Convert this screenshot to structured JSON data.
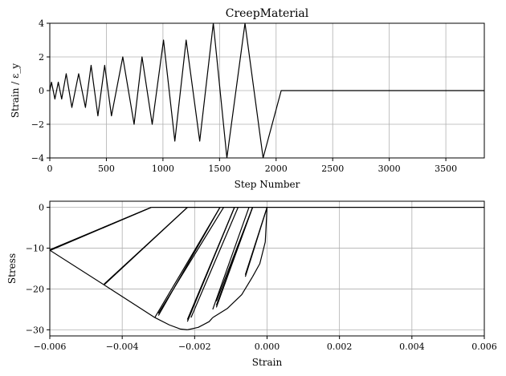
{
  "chart_data": [
    {
      "type": "line",
      "title": "CreepMaterial",
      "xlabel": "Step Number",
      "ylabel": "Strain / ε_y",
      "xlim": [
        0,
        3840
      ],
      "ylim": [
        -4,
        4
      ],
      "xticks": [
        0,
        500,
        1000,
        1500,
        2000,
        2500,
        3000,
        3500
      ],
      "yticks": [
        -4,
        -2,
        0,
        2,
        4
      ],
      "xtick_labels": [
        "0",
        "500",
        "1000",
        "1500",
        "2000",
        "2500",
        "3000",
        "3500"
      ],
      "ytick_labels": [
        "−4",
        "−2",
        "0",
        "2",
        "4"
      ],
      "grid": true,
      "series": [
        {
          "x": [
            0,
            15,
            45,
            75,
            105,
            145,
            195,
            255,
            315,
            365,
            425,
            485,
            545,
            645,
            745,
            815,
            905,
            1005,
            1105,
            1205,
            1325,
            1445,
            1565,
            1725,
            1885,
            2045,
            2205,
            2365,
            2525,
            2725,
            2925,
            3125,
            3325,
            3525,
            3725,
            3840
          ],
          "y": [
            0,
            0.5,
            -0.5,
            0.5,
            -0.5,
            1.0,
            -1.0,
            1.0,
            -1.0,
            1.5,
            -1.5,
            1.5,
            -1.5,
            2.0,
            -2.0,
            2.0,
            -2.0,
            3.0,
            -3.0,
            3.0,
            -3.0,
            4.0,
            -4.0,
            4.0,
            -4.0,
            0.0,
            0.0,
            0.0,
            0.0,
            0.0,
            0.0,
            0.0,
            0.0,
            0.0,
            0.0,
            0.0
          ]
        }
      ]
    },
    {
      "type": "line",
      "title": "",
      "xlabel": "Strain",
      "ylabel": "Stress",
      "xlim": [
        -0.006,
        0.006
      ],
      "ylim": [
        -31.5,
        1.5
      ],
      "xticks": [
        -0.006,
        -0.004,
        -0.002,
        0.0,
        0.002,
        0.004,
        0.006
      ],
      "yticks": [
        -30,
        -20,
        -10,
        0
      ],
      "xtick_labels": [
        "−0.006",
        "−0.004",
        "−0.002",
        "0.000",
        "0.002",
        "0.004",
        "0.006"
      ],
      "ytick_labels": [
        "−30",
        "−20",
        "−10",
        "0"
      ],
      "grid": true,
      "series": [
        {
          "x": [
            -0.006,
            -0.0032
          ],
          "y": [
            -10.5,
            0
          ]
        },
        {
          "x": [
            -0.006,
            -0.0032
          ],
          "y": [
            -10.4,
            0
          ]
        },
        {
          "x": [
            -0.006,
            -0.0032
          ],
          "y": [
            -10.6,
            0
          ]
        },
        {
          "x": [
            -0.006,
            -0.0045
          ],
          "y": [
            -10.5,
            -19
          ]
        },
        {
          "x": [
            -0.0045,
            -0.0022
          ],
          "y": [
            -19,
            0
          ]
        },
        {
          "x": [
            -0.0045,
            -0.0022
          ],
          "y": [
            -18.8,
            0
          ]
        },
        {
          "x": [
            -0.0045,
            -0.0031
          ],
          "y": [
            -19,
            -27
          ]
        },
        {
          "x": [
            -0.0031,
            -0.0013
          ],
          "y": [
            -27,
            0
          ]
        },
        {
          "x": [
            -0.003,
            -0.0013
          ],
          "y": [
            -26.5,
            0
          ]
        },
        {
          "x": [
            -0.003,
            -0.0012
          ],
          "y": [
            -26,
            0
          ]
        },
        {
          "x": [
            -0.0031,
            -0.0027,
            -0.0024,
            -0.0022
          ],
          "y": [
            -27,
            -28.8,
            -29.8,
            -30
          ]
        },
        {
          "x": [
            -0.0022,
            -0.0019,
            -0.0016,
            -0.0015
          ],
          "y": [
            -30,
            -29.4,
            -28,
            -27
          ]
        },
        {
          "x": [
            -0.0022,
            -0.0009
          ],
          "y": [
            -28,
            0
          ]
        },
        {
          "x": [
            -0.0022,
            -0.0009
          ],
          "y": [
            -27.5,
            0
          ]
        },
        {
          "x": [
            -0.0021,
            -0.0008
          ],
          "y": [
            -27,
            0
          ]
        },
        {
          "x": [
            -0.0015,
            -0.0011,
            -0.0007,
            -0.0004
          ],
          "y": [
            -27,
            -24.8,
            -21.4,
            -17
          ]
        },
        {
          "x": [
            -0.0015,
            -0.0005
          ],
          "y": [
            -25,
            0
          ]
        },
        {
          "x": [
            -0.0014,
            -0.0004
          ],
          "y": [
            -24.5,
            0
          ]
        },
        {
          "x": [
            -0.0014,
            -0.0004
          ],
          "y": [
            -24,
            0
          ]
        },
        {
          "x": [
            -0.0014,
            -0.0004
          ],
          "y": [
            -23,
            0
          ]
        },
        {
          "x": [
            -0.0004,
            -0.0002,
            -5e-05,
            0.0
          ],
          "y": [
            -17,
            -13.8,
            -8.5,
            0
          ]
        },
        {
          "x": [
            -0.0006,
            0.0
          ],
          "y": [
            -17,
            0
          ]
        },
        {
          "x": [
            -0.0006,
            0.0
          ],
          "y": [
            -16.5,
            0
          ]
        },
        {
          "x": [
            -0.0032,
            0.006
          ],
          "y": [
            0,
            0
          ]
        }
      ]
    }
  ]
}
